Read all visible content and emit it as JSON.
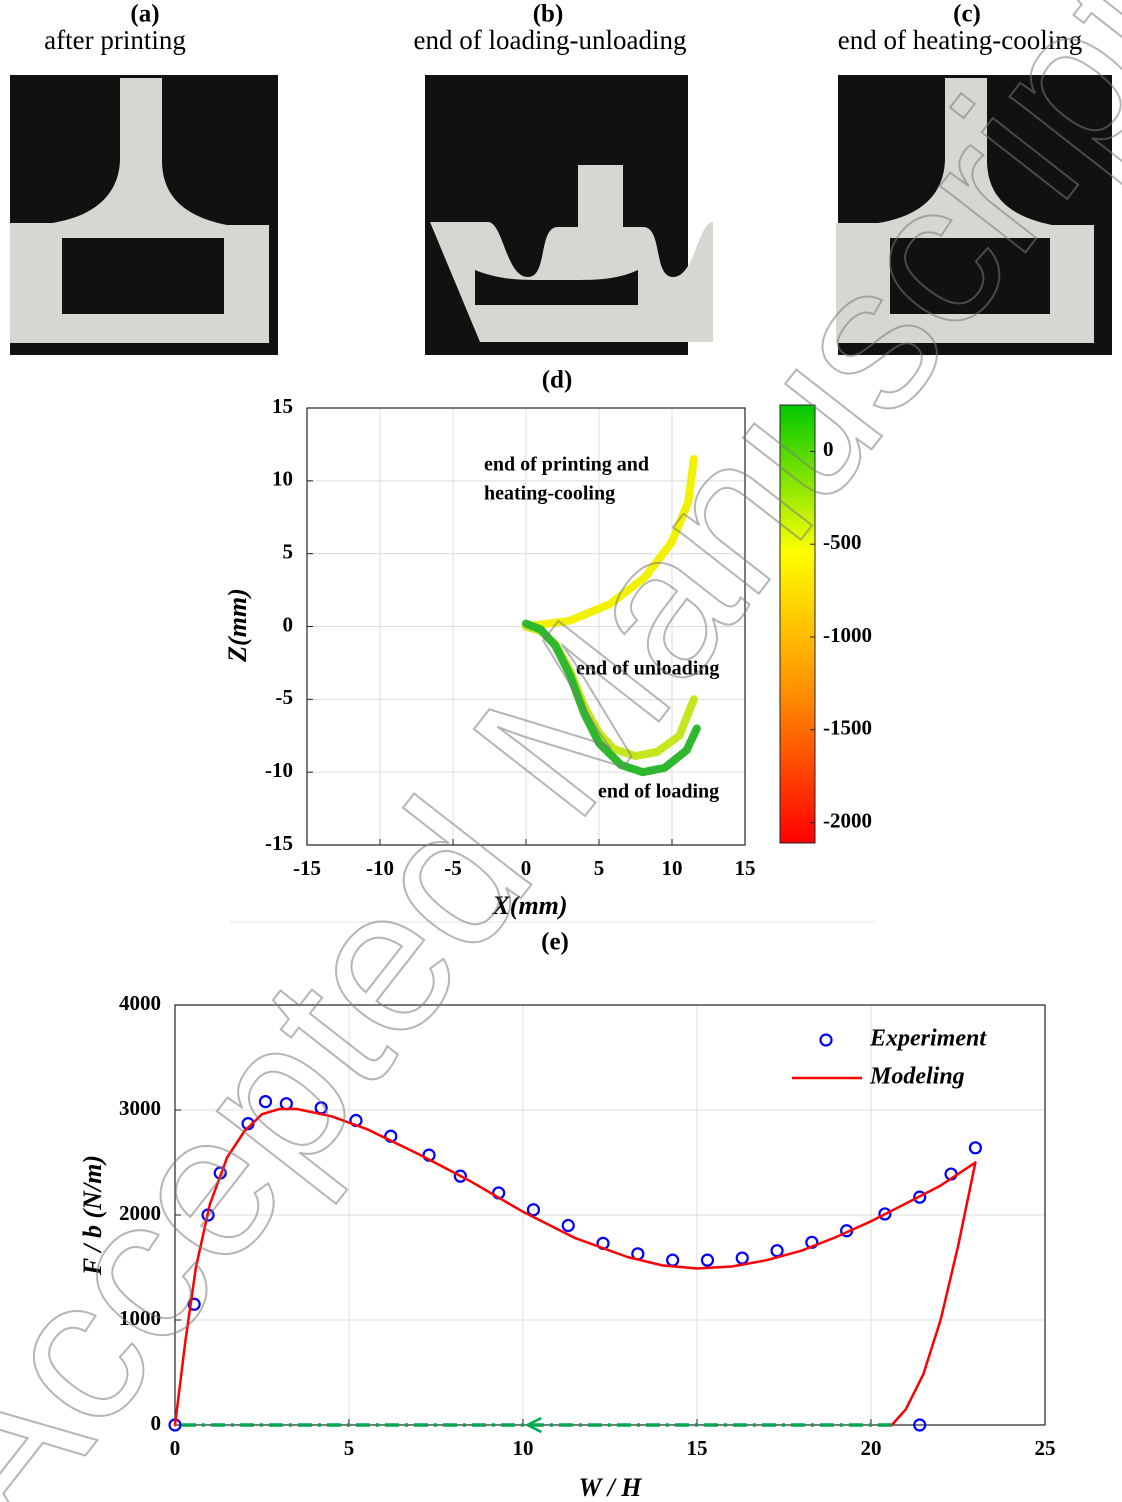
{
  "panels": [
    {
      "label": "(a)",
      "caption": "after printing"
    },
    {
      "label": "(b)",
      "caption": "end of loading-unloading"
    },
    {
      "label": "(c)",
      "caption": "end of heating-cooling"
    }
  ],
  "watermark": "Accepted Manuscript",
  "chart_data": [
    {
      "type": "line",
      "title": "(d)",
      "x_label": "X(mm)",
      "y_label": "Z(mm)",
      "xlim": [
        -15,
        15
      ],
      "ylim": [
        -15,
        15
      ],
      "xticks": [
        -15,
        -10,
        -5,
        0,
        5,
        10,
        15
      ],
      "yticks": [
        -15,
        -10,
        -5,
        0,
        5,
        10,
        15
      ],
      "grid": true,
      "annotations": [
        "end of printing and",
        "heating-cooling",
        "end of unloading",
        "end of loading"
      ],
      "colorbar": {
        "lim": [
          -2110,
          250
        ],
        "ticks": [
          -2000,
          -1500,
          -1000,
          -500,
          0
        ],
        "colors": [
          "#ff0000",
          "#ff8c00",
          "#ffff00",
          "#00c800"
        ]
      },
      "series": [
        {
          "color": "#f2f200",
          "x": [
            0,
            2.98,
            5.75,
            8.13,
            9.96,
            11.11,
            11.5
          ],
          "values": [
            0,
            0.39,
            1.54,
            3.37,
            5.75,
            8.52,
            11.5
          ]
        },
        {
          "color": "#c8e61e",
          "x": [
            0,
            1,
            2,
            3,
            4,
            5,
            6,
            7.5,
            9,
            10.5,
            11.5
          ],
          "values": [
            0,
            -0.3,
            -1.2,
            -3,
            -5.5,
            -7.3,
            -8.4,
            -8.9,
            -8.6,
            -7.5,
            -5
          ]
        },
        {
          "color": "#2db82d",
          "x": [
            0,
            1,
            2,
            3,
            4,
            5,
            6.5,
            8,
            9.5,
            11,
            11.7
          ],
          "values": [
            0.2,
            -0.2,
            -1.3,
            -3.3,
            -6,
            -8,
            -9.5,
            -10,
            -9.7,
            -8.5,
            -7
          ]
        }
      ]
    },
    {
      "type": "scatter",
      "title": "(e)",
      "x_label": "W / H",
      "y_label": "F / b (N/m)",
      "xlim": [
        0,
        25
      ],
      "ylim": [
        0,
        4000
      ],
      "xticks": [
        0,
        5,
        10,
        15,
        20,
        25
      ],
      "yticks": [
        0,
        1000,
        2000,
        3000,
        4000
      ],
      "grid": true,
      "legend": "upper right",
      "series": [
        {
          "name": "Experiment",
          "type": "scatter",
          "color": "#0000ff",
          "x": [
            0,
            0.55,
            0.95,
            1.3,
            2.1,
            2.6,
            3.2,
            4.2,
            5.2,
            6.2,
            7.3,
            8.2,
            9.3,
            10.3,
            11.3,
            12.3,
            13.3,
            14.3,
            15.3,
            16.3,
            17.3,
            18.3,
            19.3,
            20.4,
            21.4,
            22.3,
            23,
            21.4
          ],
          "values": [
            0,
            1150,
            2000,
            2400,
            2870,
            3080,
            3060,
            3020,
            2900,
            2750,
            2570,
            2370,
            2210,
            2050,
            1900,
            1730,
            1630,
            1570,
            1570,
            1590,
            1660,
            1740,
            1850,
            2010,
            2170,
            2390,
            2640,
            0
          ]
        },
        {
          "name": "Modeling",
          "type": "line",
          "color": "#ff0000",
          "x": [
            0,
            0.3,
            0.6,
            1,
            1.5,
            2,
            2.5,
            3,
            3.5,
            4.5,
            5.5,
            7,
            8.5,
            10,
            11.5,
            13,
            14,
            15,
            16,
            17,
            18,
            19,
            20,
            21,
            22,
            23,
            22.5,
            22,
            21.5,
            21,
            20.6
          ],
          "values": [
            0,
            800,
            1500,
            2100,
            2550,
            2800,
            2960,
            3010,
            3010,
            2940,
            2820,
            2580,
            2320,
            2030,
            1780,
            1600,
            1520,
            1490,
            1510,
            1570,
            1660,
            1790,
            1940,
            2110,
            2280,
            2500,
            1700,
            1000,
            480,
            150,
            0
          ]
        },
        {
          "type": "line",
          "style": "dash-dot",
          "color": "#00a650",
          "x": [
            20.6,
            0
          ],
          "values": [
            0,
            0
          ]
        }
      ]
    }
  ]
}
